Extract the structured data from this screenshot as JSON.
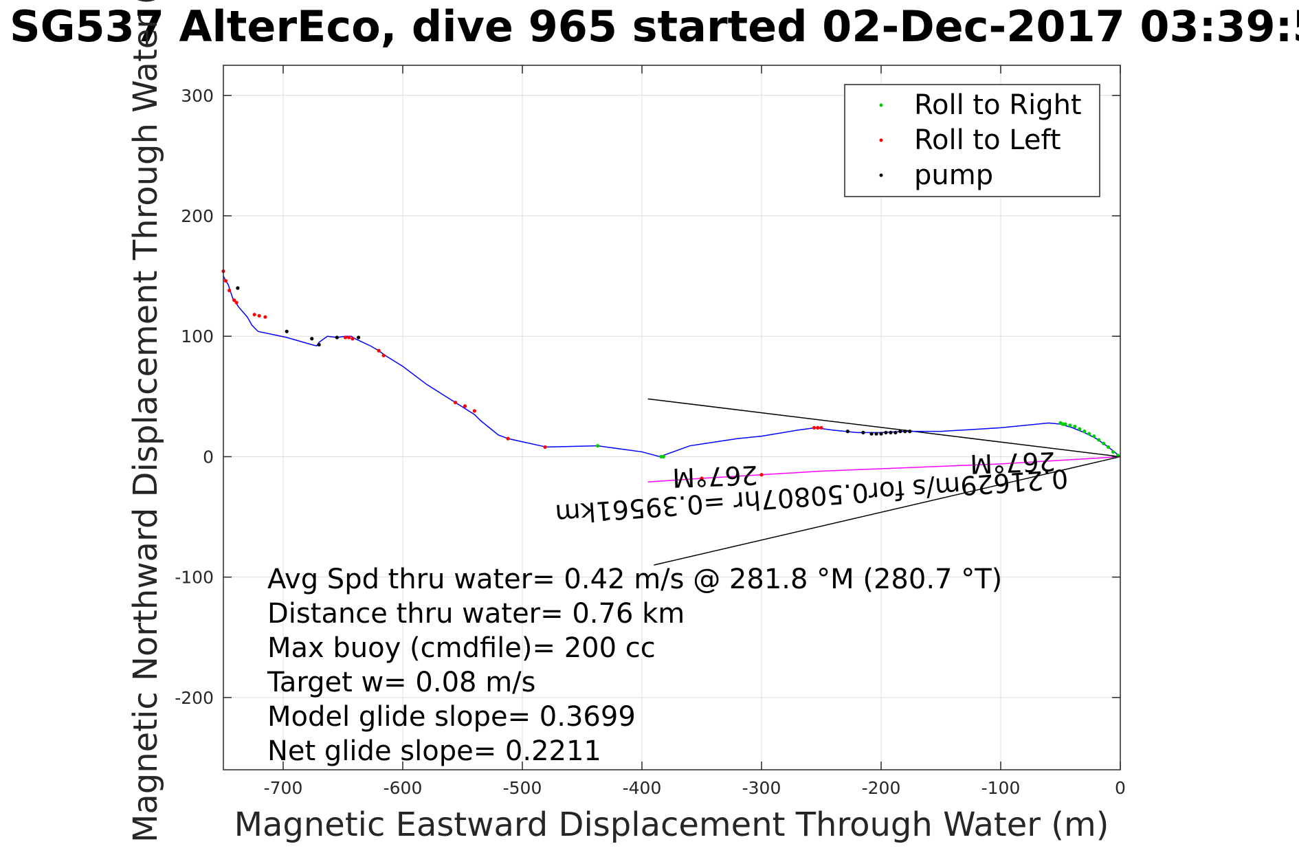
{
  "chart_data": {
    "type": "line",
    "title": "SG537 AlterEco, dive 965 started 02-Dec-2017 03:39:5",
    "xlabel": "Magnetic Eastward Displacement Through Water (m)",
    "ylabel": "Magnetic Northward Displacement Through Water (",
    "xlim": [
      -750,
      0
    ],
    "ylim": [
      -260,
      325
    ],
    "xticks": [
      -700,
      -600,
      -500,
      -400,
      -300,
      -200,
      -100,
      0
    ],
    "yticks": [
      -200,
      -100,
      0,
      100,
      200,
      300
    ],
    "grid": true,
    "legend_position": "top-right",
    "legend": [
      {
        "label": "Roll to Right",
        "color": "#00cc00"
      },
      {
        "label": "Roll to Left",
        "color": "#ff0000"
      },
      {
        "label": "pump",
        "color": "#000000"
      }
    ],
    "series": [
      {
        "color": "#0000ff",
        "style": "line",
        "x": [
          0,
          -10,
          -20,
          -30,
          -40,
          -50,
          -60,
          -100,
          -150,
          -180,
          -200,
          -220,
          -240,
          -255,
          -270,
          -300,
          -320,
          -340,
          -360,
          -385,
          -400,
          -437,
          -480,
          -512,
          -520,
          -535,
          -540,
          -548,
          -580,
          -600,
          -613,
          -616,
          -620,
          -627,
          -640,
          -643,
          -648,
          -655,
          -663,
          -670,
          -672,
          -676,
          -697,
          -721,
          -726,
          -730,
          -737,
          -739,
          -742,
          -746,
          -748,
          -750
        ],
        "y": [
          0,
          8,
          15,
          20,
          24,
          27,
          28,
          24,
          21,
          21,
          20,
          20,
          22,
          24,
          22,
          17,
          15,
          12,
          9,
          0,
          4,
          9,
          8,
          15,
          18,
          30,
          35,
          40,
          60,
          75,
          83,
          85,
          88,
          92,
          98,
          100,
          100,
          99,
          100,
          95,
          92,
          93,
          99,
          104,
          109,
          116,
          124,
          127,
          131,
          143,
          146,
          150
        ]
      },
      {
        "color": "#ff00ff",
        "style": "line",
        "x": [
          0,
          -50,
          -100,
          -150,
          -200,
          -250,
          -300,
          -350,
          -395
        ],
        "y": [
          0,
          -3,
          -6,
          -8,
          -10,
          -12,
          -15,
          -18,
          -21
        ]
      }
    ],
    "markers": {
      "roll_right": {
        "x": [
          -2,
          -6,
          -10,
          -14,
          -18,
          -22,
          -26,
          -30,
          -34,
          -38,
          -42,
          -46,
          -48,
          -50,
          -384,
          -382,
          -437
        ],
        "y": [
          1,
          4,
          8,
          11,
          14,
          17,
          19,
          21,
          23,
          25,
          26,
          27,
          27,
          28,
          0,
          0,
          9
        ]
      },
      "roll_left": {
        "x": [
          -250,
          -253,
          -256,
          -481,
          -512,
          -540,
          -548,
          -556,
          -616,
          -620,
          -642,
          -645,
          -648,
          -715,
          -720,
          -724,
          -739,
          -741,
          -745,
          -748,
          -750,
          -350,
          -300
        ],
        "y": [
          24,
          24,
          24,
          8,
          15,
          38,
          42,
          45,
          84,
          88,
          98,
          99,
          99,
          116,
          117,
          118,
          128,
          130,
          138,
          146,
          154,
          -18,
          -15
        ]
      },
      "pump": {
        "x": [
          -176,
          -180,
          -184,
          -188,
          -192,
          -196,
          -200,
          -204,
          -208,
          -215,
          -228,
          -637,
          -655,
          -676,
          -670,
          -697,
          -738
        ],
        "y": [
          21,
          21,
          21,
          20,
          20,
          20,
          19,
          19,
          19,
          20,
          21,
          99,
          99,
          98,
          93,
          104,
          140
        ]
      }
    },
    "annotations": {
      "slanted_lines": [
        {
          "from": [
            0,
            0
          ],
          "to": [
            -395,
            48
          ]
        },
        {
          "from": [
            0,
            0
          ],
          "to": [
            -390,
            -90
          ]
        }
      ],
      "rotated_labels": [
        {
          "text": "267°M",
          "x": -50,
          "y": 0
        },
        {
          "text": "0.21629m/s for0.50807hr =0.39561km",
          "x": -280,
          "y": -24
        },
        {
          "text": "267°M",
          "x": -310,
          "y": -3
        }
      ],
      "stats": [
        "Avg Spd thru water=  0.42 m/s @ 281.8 °M (280.7 °T)",
        "Distance thru water=  0.76 km",
        "Max buoy (cmdfile)= 200 cc",
        "Target w= 0.08 m/s",
        "Model glide slope= 0.3699",
        "Net glide slope= 0.2211"
      ]
    }
  }
}
